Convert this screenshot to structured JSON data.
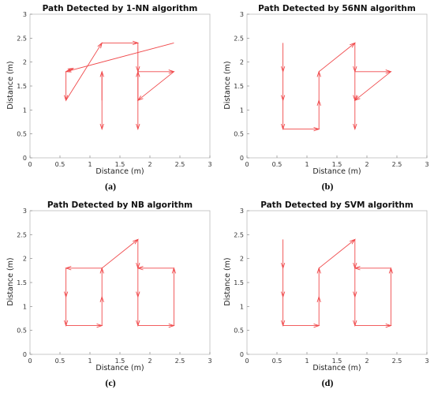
{
  "chart_data": [
    {
      "type": "line",
      "title": "Path Detected by 1-NN algorithm",
      "xlabel": "Distance (m)",
      "ylabel": "Distance (m)",
      "xlim": [
        0,
        3
      ],
      "ylim": [
        0,
        3
      ],
      "xticks": [
        "0",
        "0.5",
        "1",
        "1.5",
        "2",
        "2.5",
        "3"
      ],
      "yticks": [
        "0",
        "0.5",
        "1",
        "1.5",
        "2",
        "2.5",
        "3"
      ],
      "caption": "(a)",
      "color": "#f0484a",
      "arrows": [
        {
          "x1": 1.2,
          "y1": 1.8,
          "x2": 1.2,
          "y2": 0.6
        },
        {
          "x1": 1.2,
          "y1": 1.2,
          "x2": 1.2,
          "y2": 1.8
        },
        {
          "x1": 2.4,
          "y1": 2.4,
          "x2": 0.6,
          "y2": 1.8
        },
        {
          "x1": 0.6,
          "y1": 1.8,
          "x2": 0.72,
          "y2": 1.87
        },
        {
          "x1": 0.6,
          "y1": 1.8,
          "x2": 0.6,
          "y2": 1.2
        },
        {
          "x1": 0.6,
          "y1": 1.2,
          "x2": 1.2,
          "y2": 2.4
        },
        {
          "x1": 1.2,
          "y1": 2.4,
          "x2": 1.8,
          "y2": 2.4
        },
        {
          "x1": 1.8,
          "y1": 2.4,
          "x2": 1.8,
          "y2": 1.8
        },
        {
          "x1": 1.8,
          "y1": 1.8,
          "x2": 1.8,
          "y2": 0.6
        },
        {
          "x1": 1.8,
          "y1": 1.2,
          "x2": 1.8,
          "y2": 1.8
        },
        {
          "x1": 1.8,
          "y1": 1.8,
          "x2": 2.4,
          "y2": 1.8
        },
        {
          "x1": 2.4,
          "y1": 1.8,
          "x2": 1.8,
          "y2": 1.2
        }
      ]
    },
    {
      "type": "line",
      "title": "Path Detected by 56NN algorithm",
      "xlabel": "Distance (m)",
      "ylabel": "Distance (m)",
      "xlim": [
        0,
        3
      ],
      "ylim": [
        0,
        3
      ],
      "xticks": [
        "0",
        "0.5",
        "1",
        "1.5",
        "2",
        "2.5",
        "3"
      ],
      "yticks": [
        "0",
        "0.5",
        "1",
        "1.5",
        "2",
        "2.5",
        "3"
      ],
      "caption": "(b)",
      "color": "#f0484a",
      "arrows": [
        {
          "x1": 0.6,
          "y1": 2.4,
          "x2": 0.6,
          "y2": 1.8
        },
        {
          "x1": 0.6,
          "y1": 1.8,
          "x2": 0.6,
          "y2": 1.2
        },
        {
          "x1": 0.6,
          "y1": 1.2,
          "x2": 0.6,
          "y2": 0.6
        },
        {
          "x1": 0.6,
          "y1": 0.6,
          "x2": 1.2,
          "y2": 0.6
        },
        {
          "x1": 1.2,
          "y1": 0.6,
          "x2": 1.2,
          "y2": 1.2
        },
        {
          "x1": 1.2,
          "y1": 1.2,
          "x2": 1.2,
          "y2": 1.8
        },
        {
          "x1": 1.2,
          "y1": 1.8,
          "x2": 1.8,
          "y2": 2.4
        },
        {
          "x1": 1.8,
          "y1": 2.4,
          "x2": 1.8,
          "y2": 1.8
        },
        {
          "x1": 1.8,
          "y1": 1.8,
          "x2": 1.8,
          "y2": 1.2
        },
        {
          "x1": 1.8,
          "y1": 1.2,
          "x2": 1.8,
          "y2": 0.6
        },
        {
          "x1": 1.8,
          "y1": 1.8,
          "x2": 2.4,
          "y2": 1.8
        },
        {
          "x1": 2.4,
          "y1": 1.8,
          "x2": 1.8,
          "y2": 1.2
        }
      ]
    },
    {
      "type": "line",
      "title": "Path Detected by NB algorithm",
      "xlabel": "Distance (m)",
      "ylabel": "Distance (m)",
      "xlim": [
        0,
        3
      ],
      "ylim": [
        0,
        3
      ],
      "xticks": [
        "0",
        "0.5",
        "1",
        "1.5",
        "2",
        "2.5",
        "3"
      ],
      "yticks": [
        "0",
        "0.5",
        "1",
        "1.5",
        "2",
        "2.5",
        "3"
      ],
      "caption": "(c)",
      "color": "#f0484a",
      "arrows": [
        {
          "x1": 1.2,
          "y1": 1.8,
          "x2": 0.6,
          "y2": 1.8
        },
        {
          "x1": 0.6,
          "y1": 1.8,
          "x2": 0.6,
          "y2": 1.2
        },
        {
          "x1": 0.6,
          "y1": 1.2,
          "x2": 0.6,
          "y2": 0.6
        },
        {
          "x1": 0.6,
          "y1": 0.6,
          "x2": 1.2,
          "y2": 0.6
        },
        {
          "x1": 1.2,
          "y1": 0.6,
          "x2": 1.2,
          "y2": 1.2
        },
        {
          "x1": 1.2,
          "y1": 1.2,
          "x2": 1.2,
          "y2": 1.8
        },
        {
          "x1": 1.2,
          "y1": 1.8,
          "x2": 1.8,
          "y2": 2.4
        },
        {
          "x1": 1.8,
          "y1": 2.4,
          "x2": 1.8,
          "y2": 1.8
        },
        {
          "x1": 1.8,
          "y1": 1.8,
          "x2": 1.8,
          "y2": 1.2
        },
        {
          "x1": 1.8,
          "y1": 1.2,
          "x2": 1.8,
          "y2": 0.6
        },
        {
          "x1": 1.8,
          "y1": 0.6,
          "x2": 2.4,
          "y2": 0.6
        },
        {
          "x1": 2.4,
          "y1": 0.6,
          "x2": 2.4,
          "y2": 1.8
        },
        {
          "x1": 2.4,
          "y1": 1.8,
          "x2": 1.8,
          "y2": 1.8
        }
      ]
    },
    {
      "type": "line",
      "title": "Path Detected by SVM algorithm",
      "xlabel": "Distance (m)",
      "ylabel": "Distance (m)",
      "xlim": [
        0,
        3
      ],
      "ylim": [
        0,
        3
      ],
      "xticks": [
        "0",
        "0.5",
        "1",
        "1.5",
        "2",
        "2.5",
        "3"
      ],
      "yticks": [
        "0",
        "0.5",
        "1",
        "1.5",
        "2",
        "2.5",
        "3"
      ],
      "caption": "(d)",
      "color": "#f0484a",
      "arrows": [
        {
          "x1": 0.6,
          "y1": 2.4,
          "x2": 0.6,
          "y2": 1.8
        },
        {
          "x1": 0.6,
          "y1": 1.8,
          "x2": 0.6,
          "y2": 1.2
        },
        {
          "x1": 0.6,
          "y1": 1.2,
          "x2": 0.6,
          "y2": 0.6
        },
        {
          "x1": 0.6,
          "y1": 0.6,
          "x2": 1.2,
          "y2": 0.6
        },
        {
          "x1": 1.2,
          "y1": 0.6,
          "x2": 1.2,
          "y2": 1.2
        },
        {
          "x1": 1.2,
          "y1": 1.2,
          "x2": 1.2,
          "y2": 1.8
        },
        {
          "x1": 1.2,
          "y1": 1.8,
          "x2": 1.8,
          "y2": 2.4
        },
        {
          "x1": 1.8,
          "y1": 2.4,
          "x2": 1.8,
          "y2": 1.8
        },
        {
          "x1": 1.8,
          "y1": 1.8,
          "x2": 1.8,
          "y2": 1.2
        },
        {
          "x1": 1.8,
          "y1": 1.2,
          "x2": 1.8,
          "y2": 0.6
        },
        {
          "x1": 1.8,
          "y1": 0.6,
          "x2": 2.4,
          "y2": 0.6
        },
        {
          "x1": 2.4,
          "y1": 0.6,
          "x2": 2.4,
          "y2": 1.8
        },
        {
          "x1": 2.4,
          "y1": 1.8,
          "x2": 1.8,
          "y2": 1.8
        }
      ]
    }
  ]
}
